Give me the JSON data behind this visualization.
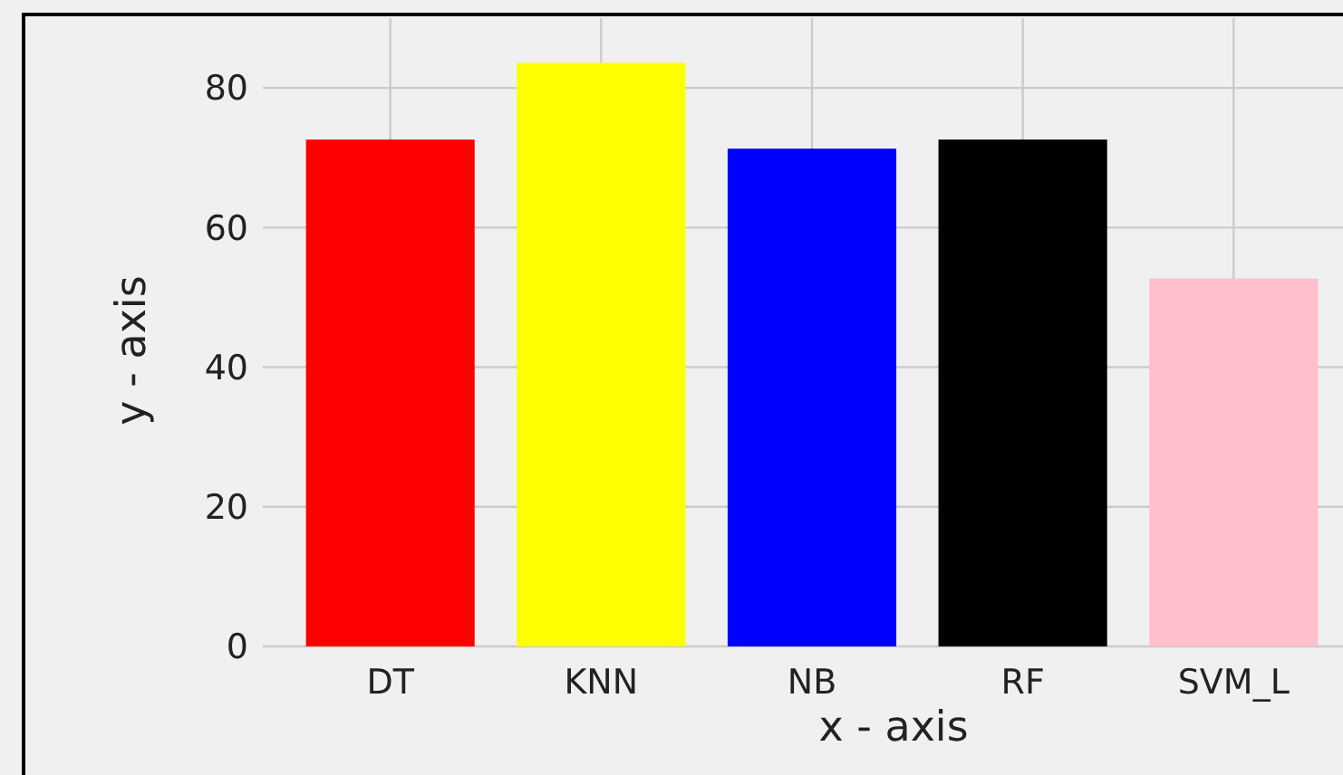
{
  "chart_data": {
    "type": "bar",
    "xlabel": "x - axis",
    "ylabel": "y - axis",
    "categories": [
      "DT",
      "KNN",
      "NB",
      "RF",
      "SVM_L"
    ],
    "values": [
      72.6,
      83.6,
      71.3,
      72.6,
      52.7
    ],
    "colors": [
      "#ff0000",
      "#ffff00",
      "#0000ff",
      "#000000",
      "#ffc0cb"
    ],
    "ylim": [
      0,
      90
    ],
    "yticks": [
      0,
      20,
      40,
      60,
      80
    ],
    "grid": true
  }
}
